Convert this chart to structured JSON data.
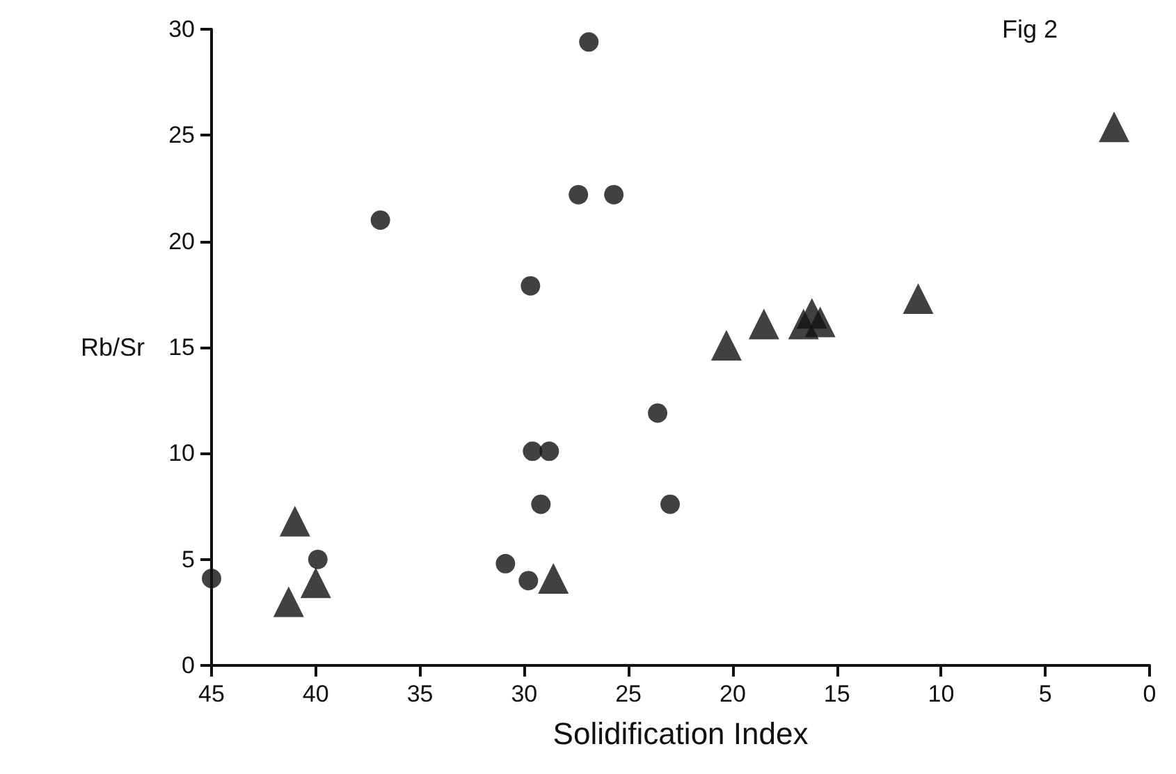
{
  "chart_data": {
    "type": "scatter",
    "xlabel": "Solidification Index",
    "ylabel": "Rb/Sr",
    "annotations": [
      "Fig 2"
    ],
    "xlim": [
      45,
      0
    ],
    "xticks": [
      45,
      40,
      35,
      30,
      25,
      20,
      15,
      10,
      5,
      0
    ],
    "ylim": [
      0,
      30
    ],
    "yticks": [
      0,
      5,
      10,
      15,
      20,
      25,
      30
    ],
    "grid": false,
    "series": [
      {
        "color": "#111111",
        "marker": "circle",
        "x": [
          45,
          36.9,
          39.9,
          30.9,
          29.8,
          29.7,
          29.6,
          28.8,
          29.2,
          26.9,
          27.4,
          25.7,
          23.6,
          23.0
        ],
        "values": [
          4.1,
          21.0,
          5.0,
          4.8,
          4.0,
          17.9,
          10.1,
          10.1,
          7.6,
          29.4,
          22.2,
          22.2,
          11.9,
          7.6
        ]
      },
      {
        "color": "#111111",
        "marker": "triangle",
        "x": [
          41.3,
          41.0,
          40.0,
          28.6,
          20.3,
          18.5,
          16.6,
          16.2,
          15.8,
          11.1,
          1.7
        ],
        "values": [
          3.0,
          6.8,
          3.9,
          4.1,
          15.1,
          16.1,
          16.1,
          16.6,
          16.2,
          17.3,
          25.4
        ]
      }
    ]
  }
}
